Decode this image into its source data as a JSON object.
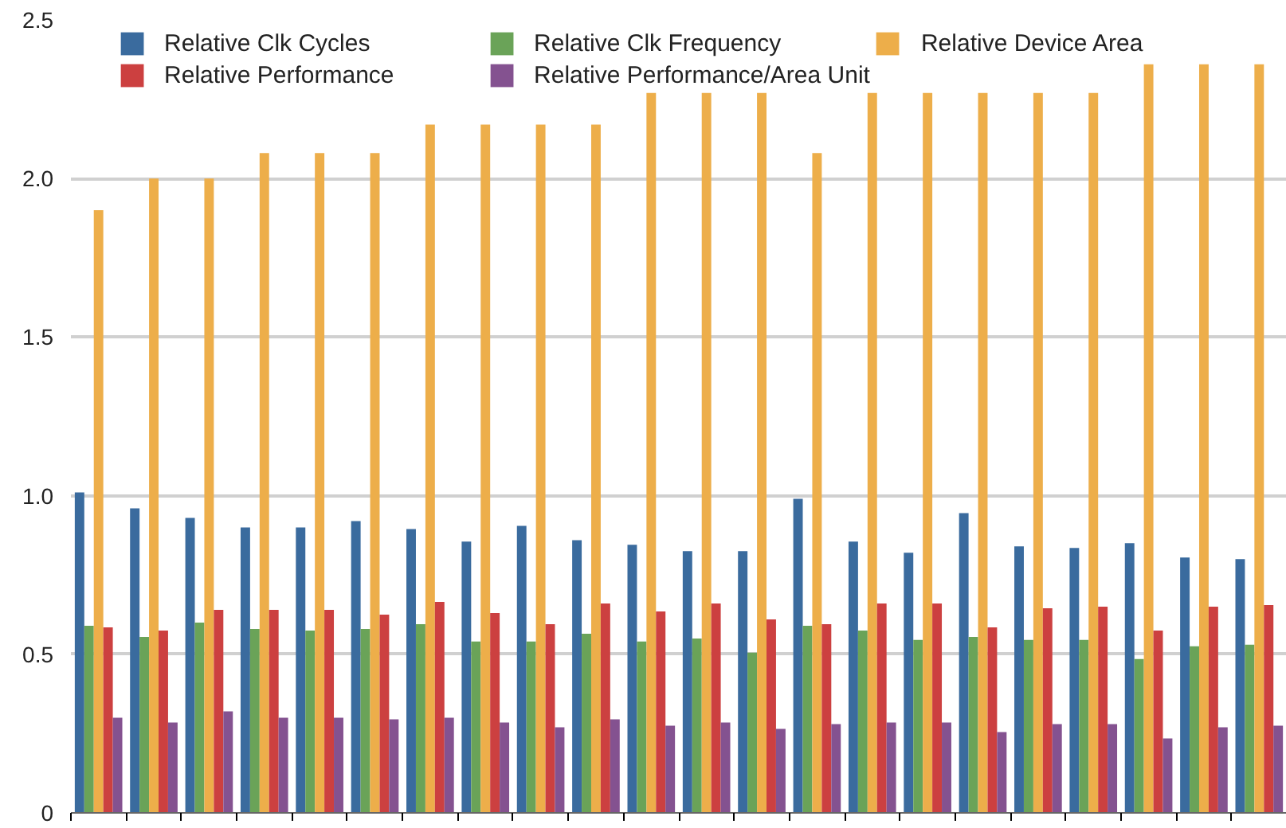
{
  "chart_data": {
    "type": "bar",
    "categories": [
      null,
      null,
      null,
      null,
      null,
      null,
      null,
      null,
      null,
      null,
      null,
      null,
      null,
      null,
      null,
      null,
      null,
      null,
      null,
      null,
      null,
      null
    ],
    "series": [
      {
        "name": "Relative Clk Cycles",
        "color": "#3a6b9e",
        "values": [
          1.01,
          0.96,
          0.93,
          0.9,
          0.9,
          0.92,
          0.895,
          0.855,
          0.905,
          0.86,
          0.845,
          0.825,
          0.825,
          0.99,
          0.855,
          0.82,
          0.945,
          0.84,
          0.835,
          0.85,
          0.805,
          0.8
        ]
      },
      {
        "name": "Relative Clk Frequency",
        "color": "#6aa358",
        "values": [
          0.59,
          0.555,
          0.6,
          0.58,
          0.575,
          0.58,
          0.595,
          0.54,
          0.54,
          0.565,
          0.54,
          0.55,
          0.505,
          0.59,
          0.575,
          0.545,
          0.555,
          0.545,
          0.545,
          0.485,
          0.525,
          0.53
        ]
      },
      {
        "name": "Relative Device Area",
        "color": "#edae4a",
        "values": [
          1.9,
          2.0,
          2.0,
          2.08,
          2.08,
          2.08,
          2.17,
          2.17,
          2.17,
          2.17,
          2.27,
          2.27,
          2.27,
          2.08,
          2.27,
          2.27,
          2.27,
          2.27,
          2.27,
          2.36,
          2.36,
          2.36
        ]
      },
      {
        "name": "Relative Performance",
        "color": "#cc4040",
        "values": [
          0.585,
          0.575,
          0.64,
          0.64,
          0.64,
          0.625,
          0.665,
          0.63,
          0.595,
          0.66,
          0.635,
          0.66,
          0.61,
          0.595,
          0.66,
          0.66,
          0.585,
          0.645,
          0.65,
          0.575,
          0.65,
          0.655
        ]
      },
      {
        "name": "Relative Performance/Area Unit",
        "color": "#845290",
        "values": [
          0.3,
          0.285,
          0.32,
          0.3,
          0.3,
          0.295,
          0.3,
          0.285,
          0.27,
          0.295,
          0.275,
          0.285,
          0.265,
          0.28,
          0.285,
          0.285,
          0.255,
          0.28,
          0.28,
          0.235,
          0.27,
          0.275
        ]
      }
    ],
    "ylim": [
      0,
      2.5
    ],
    "yticks": [
      0,
      {
        "value": 0.5,
        "label": "0.5"
      },
      {
        "value": 1,
        "label": "1.0"
      },
      {
        "value": 1.5,
        "label": "1.5"
      },
      {
        "value": 2,
        "label": "2.0"
      },
      {
        "value": 2.5,
        "label": "2.5"
      }
    ],
    "grid": "y",
    "legend": "top"
  }
}
